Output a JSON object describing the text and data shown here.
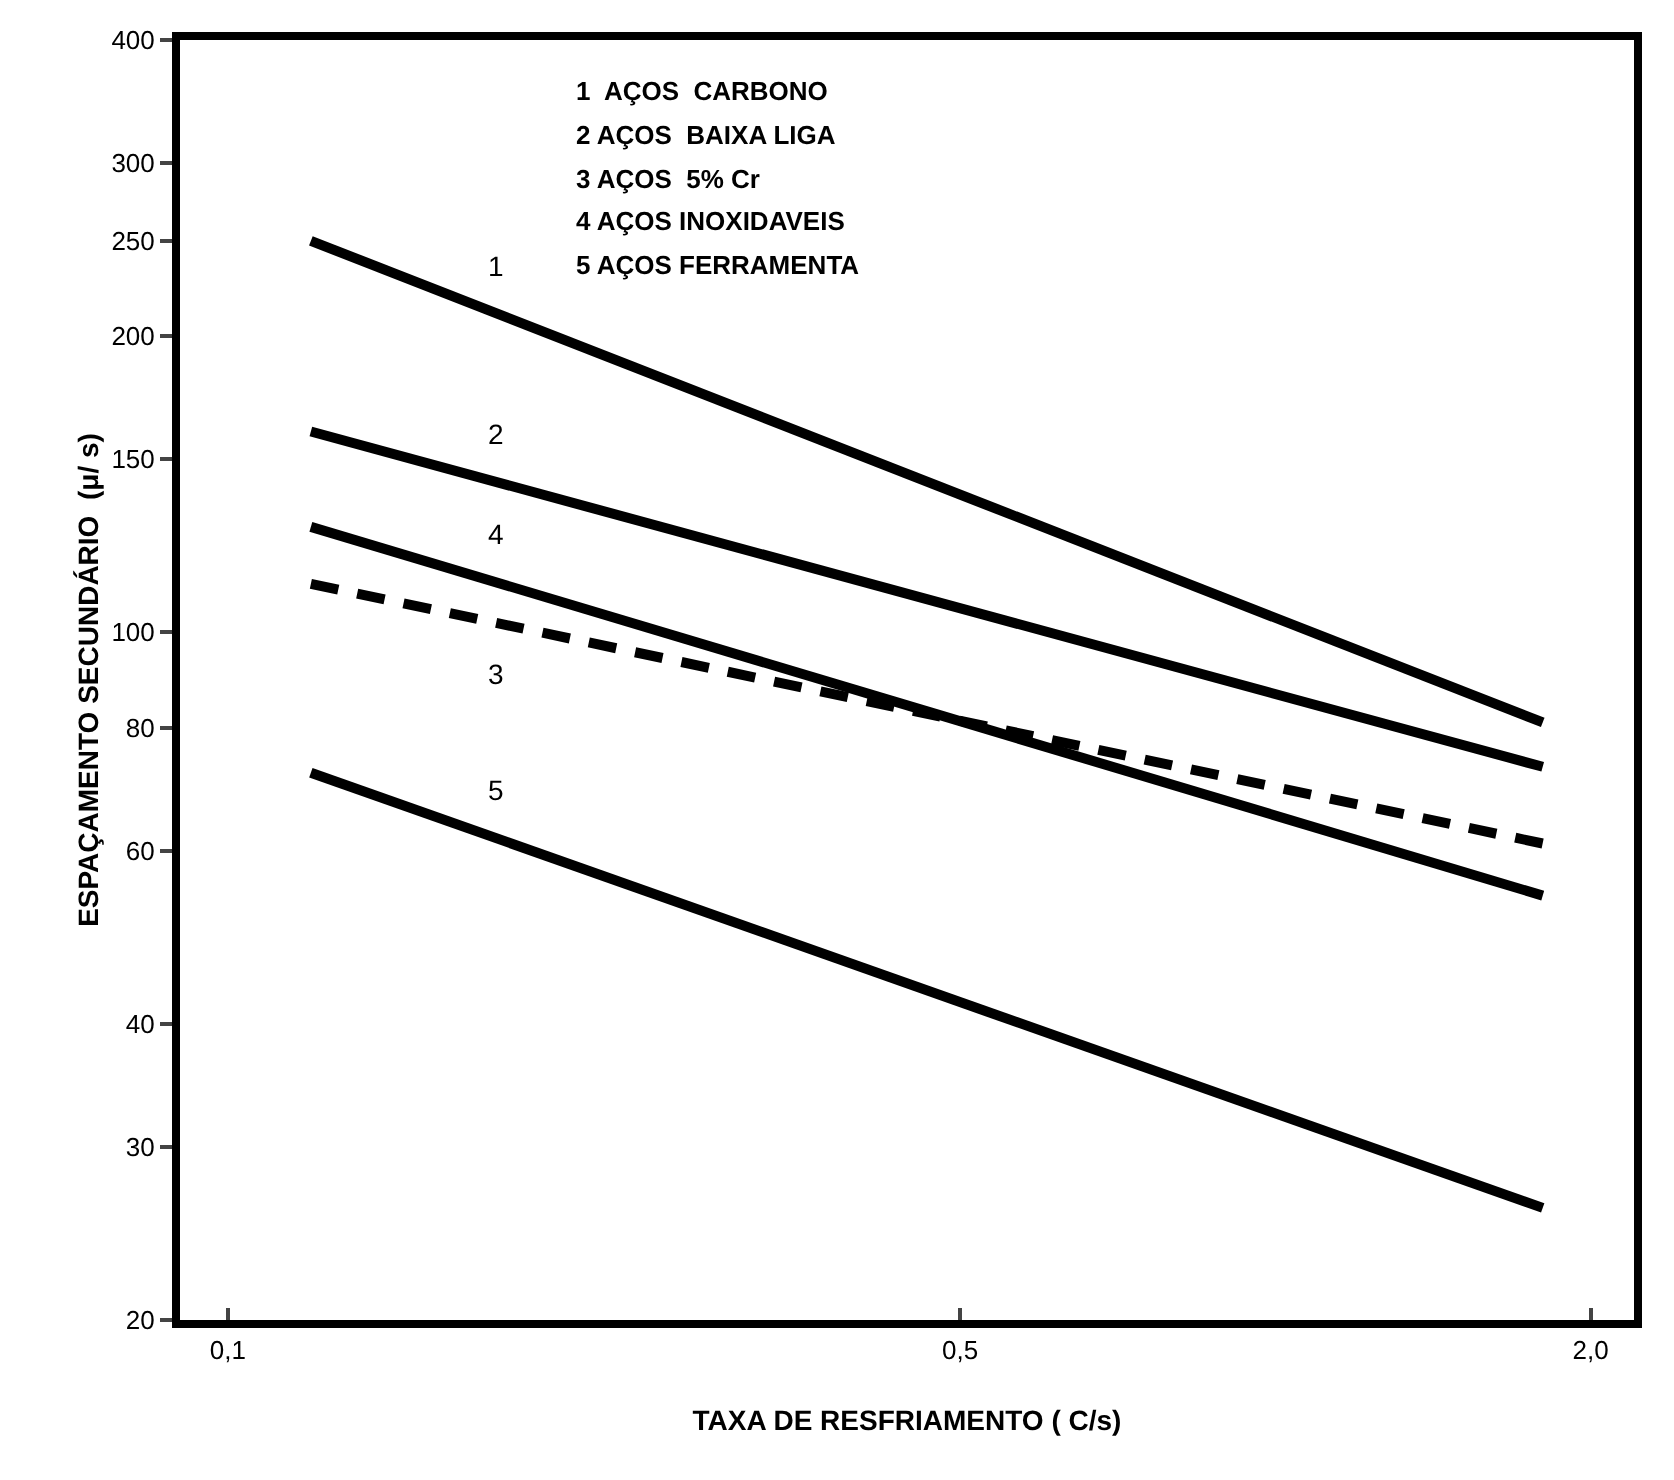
{
  "chart_data": {
    "type": "line",
    "xlabel": "TAXA DE RESFRIAMENTO ( C/s)",
    "ylabel": "ESPAÇAMENTO SECUNDÁRIO  (μ/ s)",
    "log": "xy",
    "grid": false,
    "legend": false,
    "marker": "none",
    "xlim": [
      0.09,
      2.2
    ],
    "xticks": [
      {
        "value": 0.1,
        "label": "0,1"
      },
      {
        "value": 0.5,
        "label": "0,5"
      },
      {
        "value": 2.0,
        "label": "2,0"
      }
    ],
    "ylim": [
      20,
      400
    ],
    "yticks": [
      20,
      30,
      40,
      60,
      80,
      100,
      150,
      200,
      250,
      300,
      400
    ],
    "x": [
      0.12,
      1.8
    ],
    "series": [
      {
        "name": "1",
        "color": "#000000",
        "values": [
          250,
          81
        ]
      },
      {
        "name": "2",
        "color": "#000000",
        "values": [
          160,
          73
        ]
      },
      {
        "name": "3",
        "color": "#000000",
        "values": [
          112,
          61
        ],
        "line_style": "dashed"
      },
      {
        "name": "4",
        "color": "#000000",
        "values": [
          128,
          54
        ]
      },
      {
        "name": "5",
        "color": "#000000",
        "values": [
          72,
          26
        ]
      }
    ],
    "annotations": [
      "1  AÇOS  CARBONO",
      "2 AÇOS  BAIXA LIGA",
      "3 AÇOS  5% Cr",
      "4 AÇOS INOXIDAVEIS",
      "5 AÇOS FERRAMENTA"
    ]
  }
}
